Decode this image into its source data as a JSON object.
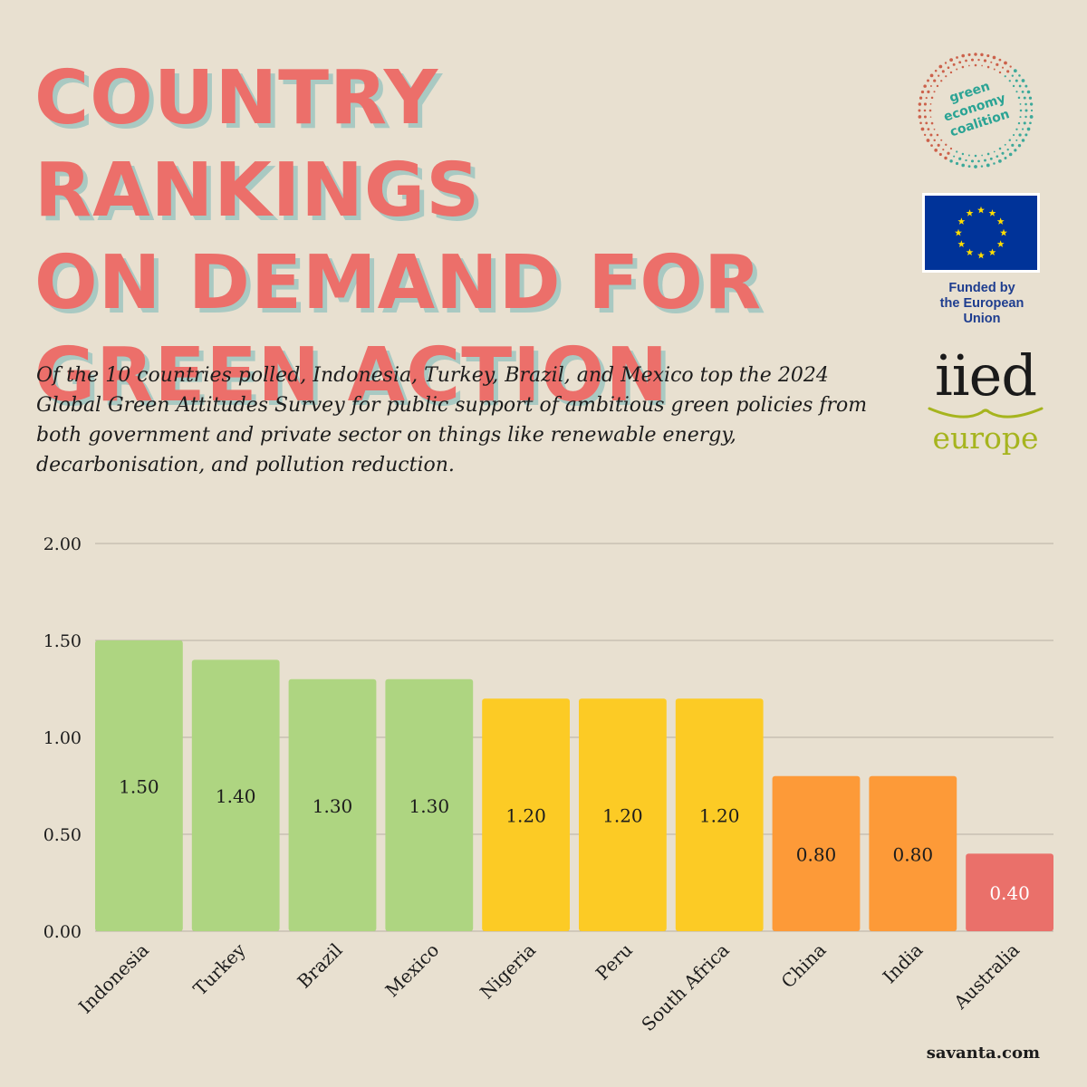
{
  "title_lines": [
    "COUNTRY RANKINGS",
    "ON DEMAND FOR",
    "GREEN ACTION"
  ],
  "intro": "Of the 10 countries polled, Indonesia, Turkey, Brazil, and Mexico top the 2024 Global Green Attitudes Survey for public support of ambitious green policies from both government and private sector on things like renewable energy, decarbonisation, and pollution reduction.",
  "logos": {
    "gec": [
      "green",
      "economy",
      "coalition"
    ],
    "eu_caption_lines": [
      "Funded by",
      "the European Union"
    ],
    "iied_word": "iied",
    "iied_sub": "europe"
  },
  "source": "savanta.com",
  "colors": {
    "background": "#e8e0d0",
    "title": "#ec6f6a",
    "green": "#aed581",
    "yellow": "#fccb25",
    "orange": "#fd9a38",
    "red": "#ea706a",
    "eu_blue": "#003399",
    "eu_star": "#ffdd00"
  },
  "chart_data": {
    "type": "bar",
    "categories": [
      "Indonesia",
      "Turkey",
      "Brazil",
      "Mexico",
      "Nigeria",
      "Peru",
      "South Africa",
      "China",
      "India",
      "Australia"
    ],
    "values": [
      1.5,
      1.4,
      1.3,
      1.3,
      1.2,
      1.2,
      1.2,
      0.8,
      0.8,
      0.4
    ],
    "value_labels": [
      "1.50",
      "1.40",
      "1.30",
      "1.30",
      "1.20",
      "1.20",
      "1.20",
      "0.80",
      "0.80",
      "0.40"
    ],
    "bar_colors": [
      "#aed581",
      "#aed581",
      "#aed581",
      "#aed581",
      "#fccb25",
      "#fccb25",
      "#fccb25",
      "#fd9a38",
      "#fd9a38",
      "#ea706a"
    ],
    "value_label_colors": [
      "#1c1c1c",
      "#1c1c1c",
      "#1c1c1c",
      "#1c1c1c",
      "#1c1c1c",
      "#1c1c1c",
      "#1c1c1c",
      "#1c1c1c",
      "#1c1c1c",
      "#ffffff"
    ],
    "y_ticks": [
      "0.00",
      "0.50",
      "1.00",
      "1.50",
      "2.00"
    ],
    "ylim": [
      0,
      2
    ],
    "grid": true,
    "xlabel": "",
    "ylabel": ""
  }
}
